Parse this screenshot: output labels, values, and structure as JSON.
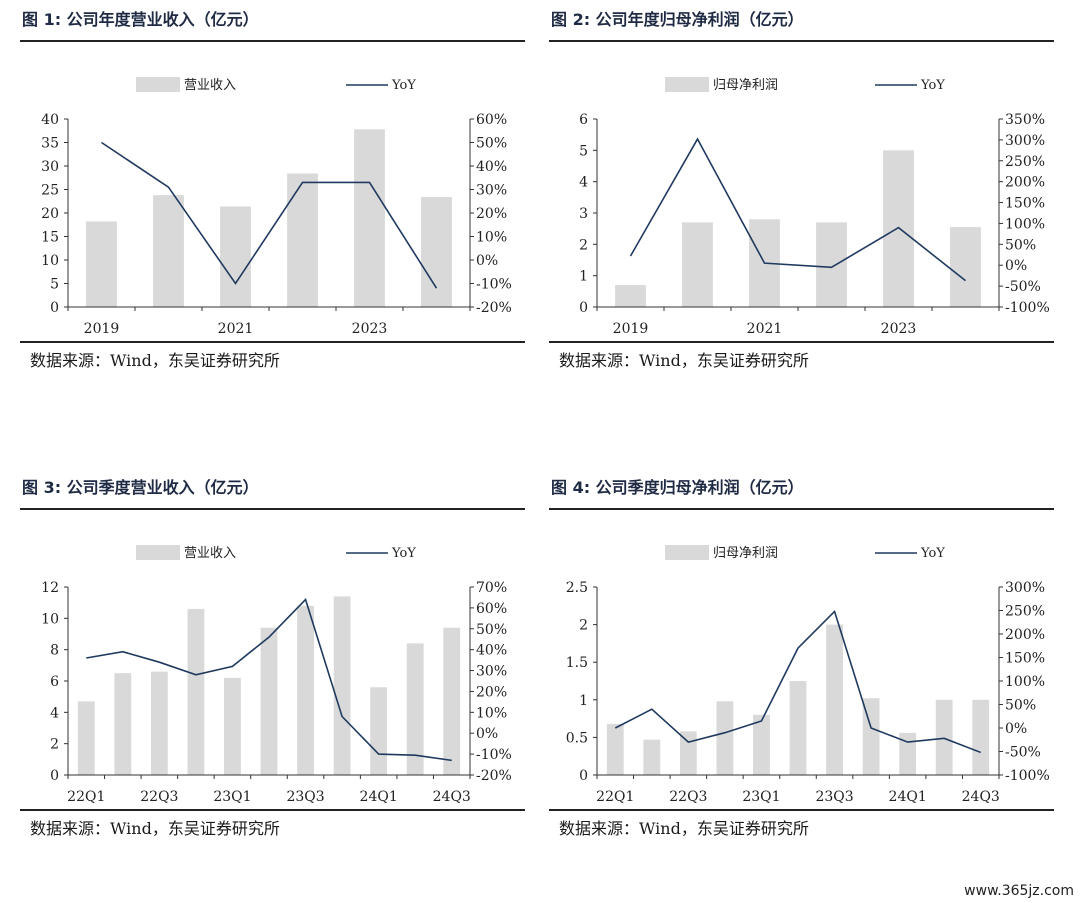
{
  "panels": [
    {
      "title": "图 1: 公司年度营业收入（亿元）",
      "source": "数据来源：Wind，东吴证券研究所"
    },
    {
      "title": "图 2: 公司年度归母净利润（亿元）",
      "source": "数据来源：Wind，东吴证券研究所"
    },
    {
      "title": "图 3: 公司季度营业收入（亿元）",
      "source": "数据来源：Wind，东吴证券研究所"
    },
    {
      "title": "图 4: 公司季度归母净利润（亿元）",
      "source": "数据来源：Wind，东吴证券研究所"
    }
  ],
  "watermark": "www.365jz.com",
  "colors": {
    "bar": "#d9d9d9",
    "line": "#1f3a5f",
    "axis": "#333333"
  },
  "chart_data": [
    {
      "type": "bar",
      "categories": [
        "2019",
        "2020",
        "2021",
        "2022",
        "2023",
        "2024"
      ],
      "xtick_labels": [
        "2019",
        "",
        "2021",
        "",
        "2023",
        ""
      ],
      "series": [
        {
          "name": "营业收入",
          "type": "bar",
          "axis": "left",
          "values": [
            18.2,
            23.8,
            21.4,
            28.4,
            37.8,
            23.4
          ]
        },
        {
          "name": "YoY",
          "type": "line",
          "axis": "right",
          "values": [
            50,
            31,
            -10,
            33,
            33,
            -12
          ]
        }
      ],
      "ylim": [
        0,
        40
      ],
      "yticks": [
        0,
        5,
        10,
        15,
        20,
        25,
        30,
        35,
        40
      ],
      "y2lim": [
        -20,
        60
      ],
      "y2ticks": [
        -20,
        -10,
        0,
        10,
        20,
        30,
        40,
        50,
        60
      ],
      "y2suffix": "%",
      "legend": "top"
    },
    {
      "type": "bar",
      "categories": [
        "2019",
        "2020",
        "2021",
        "2022",
        "2023",
        "2024"
      ],
      "xtick_labels": [
        "2019",
        "",
        "2021",
        "",
        "2023",
        ""
      ],
      "series": [
        {
          "name": "归母净利润",
          "type": "bar",
          "axis": "left",
          "values": [
            0.7,
            2.7,
            2.8,
            2.7,
            5.0,
            2.55
          ]
        },
        {
          "name": "YoY",
          "type": "line",
          "axis": "right",
          "values": [
            22,
            302,
            5,
            -5,
            90,
            -37
          ]
        }
      ],
      "ylim": [
        0,
        6
      ],
      "yticks": [
        0,
        1,
        2,
        3,
        4,
        5,
        6
      ],
      "y2lim": [
        -100,
        350
      ],
      "y2ticks": [
        -100,
        -50,
        0,
        50,
        100,
        150,
        200,
        250,
        300,
        350
      ],
      "y2suffix": "%",
      "legend": "top"
    },
    {
      "type": "bar",
      "categories": [
        "22Q1",
        "22Q2",
        "22Q3",
        "22Q4",
        "23Q1",
        "23Q2",
        "23Q3",
        "23Q4",
        "24Q1",
        "24Q2",
        "24Q3"
      ],
      "xtick_labels": [
        "22Q1",
        "",
        "22Q3",
        "",
        "23Q1",
        "",
        "23Q3",
        "",
        "24Q1",
        "",
        "24Q3"
      ],
      "series": [
        {
          "name": "营业收入",
          "type": "bar",
          "axis": "left",
          "values": [
            4.7,
            6.5,
            6.6,
            10.6,
            6.2,
            9.4,
            10.8,
            11.4,
            5.6,
            8.4,
            9.4
          ]
        },
        {
          "name": "YoY",
          "type": "line",
          "axis": "right",
          "values": [
            36,
            39,
            34,
            28,
            32,
            46,
            64,
            8,
            -10,
            -10.5,
            -13
          ]
        }
      ],
      "ylim": [
        0,
        12
      ],
      "yticks": [
        0,
        2,
        4,
        6,
        8,
        10,
        12
      ],
      "y2lim": [
        -20,
        70
      ],
      "y2ticks": [
        -20,
        -10,
        0,
        10,
        20,
        30,
        40,
        50,
        60,
        70
      ],
      "y2suffix": "%",
      "legend": "top"
    },
    {
      "type": "bar",
      "categories": [
        "22Q1",
        "22Q2",
        "22Q3",
        "22Q4",
        "23Q1",
        "23Q2",
        "23Q3",
        "23Q4",
        "24Q1",
        "24Q2",
        "24Q3"
      ],
      "xtick_labels": [
        "22Q1",
        "",
        "22Q3",
        "",
        "23Q1",
        "",
        "23Q3",
        "",
        "24Q1",
        "",
        "24Q3"
      ],
      "series": [
        {
          "name": "归母净利润",
          "type": "bar",
          "axis": "left",
          "values": [
            0.68,
            0.47,
            0.58,
            0.98,
            0.8,
            1.25,
            2.0,
            1.02,
            0.56,
            1.0,
            1.0
          ]
        },
        {
          "name": "YoY",
          "type": "line",
          "axis": "right",
          "values": [
            0,
            40,
            -30,
            -10,
            15,
            170,
            248,
            0,
            -30,
            -22,
            -52
          ]
        }
      ],
      "ylim": [
        0,
        2.5
      ],
      "yticks": [
        0,
        0.5,
        1,
        1.5,
        2,
        2.5
      ],
      "y2lim": [
        -100,
        300
      ],
      "y2ticks": [
        -100,
        -50,
        0,
        50,
        100,
        150,
        200,
        250,
        300
      ],
      "y2suffix": "%",
      "legend": "top"
    }
  ]
}
